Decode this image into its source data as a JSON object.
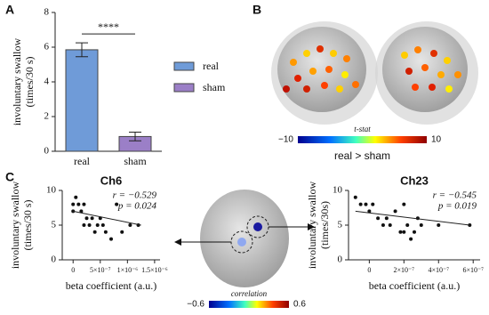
{
  "panels": [
    "A",
    "B",
    "C"
  ],
  "chart_data": [
    {
      "type": "bar",
      "categories": [
        "real",
        "sham"
      ],
      "values": [
        5.85,
        0.85
      ],
      "errors": [
        0.4,
        0.25
      ],
      "colors": [
        "#6f9bd8",
        "#9b7fc7"
      ],
      "ylabel": [
        "involuntary swallow",
        "(times/30 s)"
      ],
      "ylim": [
        0,
        8
      ],
      "yticks": [
        0,
        2,
        4,
        6,
        8
      ],
      "legend": true,
      "annotation": "****"
    },
    {
      "type": "scatter",
      "title": "Ch6",
      "xlabel": "beta coefficient (a.u.)",
      "ylabel": [
        "involuntary swallow",
        "(times/30 s)"
      ],
      "x": [
        0,
        5e-08,
        1e-07,
        1.5e-07,
        2e-07,
        0,
        2.5e-07,
        3e-07,
        3.5e-07,
        4e-07,
        5e-07,
        5.5e-07,
        6e-07,
        7e-07,
        8e-07,
        9e-07,
        1.05e-06,
        1.2e-06,
        2e-07,
        4.5e-07
      ],
      "values": [
        8,
        9,
        8,
        7,
        8,
        7,
        6,
        5,
        6,
        4,
        6,
        5,
        4,
        3,
        8,
        4,
        5,
        5,
        5,
        5
      ],
      "trend": {
        "x": [
          0,
          1.25e-06
        ],
        "values": [
          7,
          5
        ]
      },
      "color": "#111111",
      "annotations": [
        "r = −0.529",
        "p = 0.024"
      ],
      "xlim": [
        -2e-07,
        1.6e-06
      ],
      "xticks": [
        0,
        {
          "value": 5e-07,
          "label": "5×10⁻⁷"
        },
        {
          "value": 1e-06,
          "label": "1×10⁻⁶"
        },
        {
          "value": 1.5e-06,
          "label": "1.5×10⁻⁶"
        }
      ],
      "ylim": [
        0,
        10
      ],
      "yticks": [
        0,
        5,
        10
      ]
    },
    {
      "type": "scatter",
      "title": "Ch23",
      "xlabel": "beta coefficient (a.u.)",
      "ylabel": [
        "involuntary swallow",
        "(times/30s)"
      ],
      "x": [
        -8e-08,
        -5e-08,
        -2e-08,
        0,
        2e-08,
        5e-08,
        8e-08,
        1e-07,
        1.2e-07,
        1.5e-07,
        1.8e-07,
        2e-07,
        2.2e-07,
        2.4e-07,
        2.6e-07,
        2.8e-07,
        3e-07,
        2e-07,
        4e-07,
        5.8e-07
      ],
      "values": [
        9,
        8,
        8,
        7,
        8,
        6,
        5,
        6,
        5,
        7,
        4,
        4,
        5,
        3,
        4,
        6,
        5,
        8,
        5,
        5
      ],
      "trend": {
        "x": [
          -8e-08,
          5.8e-07
        ],
        "values": [
          7,
          5
        ]
      },
      "color": "#111111",
      "annotations": [
        "r = −0.545",
        "p = 0.019"
      ],
      "xlim": [
        -1.2e-07,
        6.4e-07
      ],
      "xticks": [
        0,
        {
          "value": 2e-07,
          "label": "2×10⁻⁷"
        },
        {
          "value": 4e-07,
          "label": "4×10⁻⁷"
        },
        {
          "value": 6e-07,
          "label": "6×10⁻⁷"
        }
      ],
      "ylim": [
        0,
        10
      ],
      "yticks": [
        0,
        5,
        10
      ]
    }
  ],
  "colorbars": [
    {
      "title": "t-stat",
      "ticks": [
        {
          "value": -10,
          "label": "−10"
        },
        10
      ],
      "caption": "real > sham"
    },
    {
      "title": "correlation",
      "ticks": [
        {
          "value": -0.6,
          "label": "−0.6"
        },
        0.6
      ]
    }
  ]
}
